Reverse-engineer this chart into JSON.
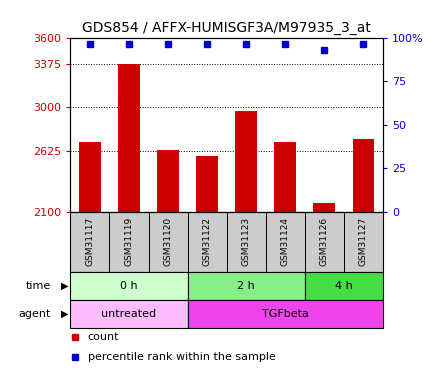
{
  "title": "GDS854 / AFFX-HUMISGF3A/M97935_3_at",
  "samples": [
    "GSM31117",
    "GSM31119",
    "GSM31120",
    "GSM31122",
    "GSM31123",
    "GSM31124",
    "GSM31126",
    "GSM31127"
  ],
  "counts": [
    2700,
    3375,
    2630,
    2580,
    2970,
    2700,
    2175,
    2725
  ],
  "percentiles": [
    96,
    96,
    96,
    96,
    96,
    96,
    93,
    96
  ],
  "ylim_left": [
    2100,
    3600
  ],
  "ylim_right": [
    0,
    100
  ],
  "yticks_left": [
    2100,
    2625,
    3000,
    3375,
    3600
  ],
  "yticks_right": [
    0,
    25,
    50,
    75,
    100
  ],
  "bar_color": "#cc0000",
  "dot_color": "#0000cc",
  "time_boundaries": [
    [
      0,
      3,
      "0 h",
      "#ccffcc"
    ],
    [
      3,
      6,
      "2 h",
      "#88ee88"
    ],
    [
      6,
      8,
      "4 h",
      "#44dd44"
    ]
  ],
  "agent_boundaries": [
    [
      0,
      3,
      "untreated",
      "#ffbbff"
    ],
    [
      3,
      8,
      "TGFbeta",
      "#ee44ee"
    ]
  ],
  "legend_count_color": "#cc0000",
  "legend_dot_color": "#0000cc",
  "bg_color": "#ffffff",
  "label_bg": "#cccccc",
  "tick_label_fontsize": 8,
  "title_fontsize": 10
}
